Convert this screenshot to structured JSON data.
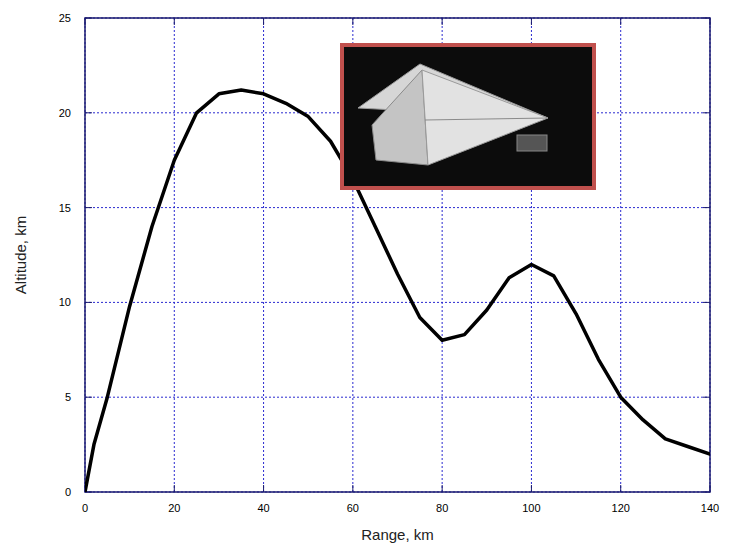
{
  "chart_data": {
    "type": "line",
    "x_label": "Range, km",
    "y_label": "Altitude, km",
    "x": [
      0,
      2,
      5,
      10,
      15,
      20,
      25,
      30,
      35,
      40,
      45,
      50,
      55,
      60,
      65,
      70,
      75,
      80,
      85,
      90,
      95,
      100,
      105,
      110,
      115,
      120,
      125,
      130,
      135,
      140
    ],
    "series": [
      {
        "name": "Altitude",
        "color": "#000000",
        "values": [
          0,
          2.5,
          5,
          9.8,
          14,
          17.5,
          20,
          21,
          21.2,
          21,
          20.5,
          19.8,
          18.5,
          16.5,
          14,
          11.5,
          9.2,
          8,
          8.3,
          9.6,
          11.3,
          12,
          11.4,
          9.4,
          7,
          5,
          3.8,
          2.8,
          2.4,
          2
        ]
      }
    ],
    "xlim": [
      0,
      140
    ],
    "xticks": [
      0,
      20,
      40,
      60,
      80,
      100,
      120,
      140
    ],
    "ylim": [
      0,
      25
    ],
    "yticks": [
      0,
      5,
      10,
      15,
      20,
      25
    ],
    "grid": true
  }
}
